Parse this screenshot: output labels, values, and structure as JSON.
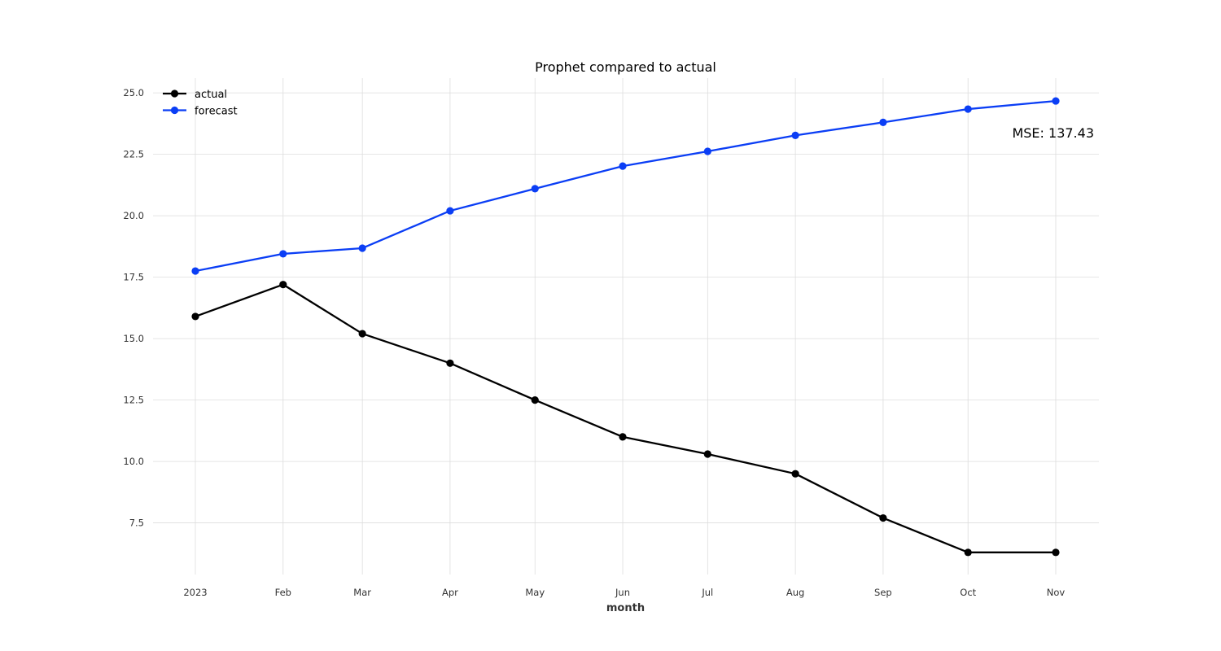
{
  "chart_data": {
    "type": "line",
    "title": "Prophet compared to actual",
    "xlabel": "month",
    "ylabel": "",
    "categories": [
      "2023",
      "Feb",
      "Mar",
      "Apr",
      "May",
      "Jun",
      "Jul",
      "Aug",
      "Sep",
      "Oct",
      "Nov"
    ],
    "x_dates": [
      "2023-01",
      "2023-02",
      "2023-03",
      "2023-04",
      "2023-05",
      "2023-06",
      "2023-07",
      "2023-08",
      "2023-09",
      "2023-10",
      "2023-11"
    ],
    "yticks": [
      7.5,
      10.0,
      12.5,
      15.0,
      17.5,
      20.0,
      22.5,
      25.0
    ],
    "ylim": [
      5.4,
      25.6
    ],
    "grid": true,
    "legend": "top-left",
    "series": [
      {
        "name": "actual",
        "color": "#000000",
        "values": [
          15.9,
          17.2,
          15.2,
          14.0,
          12.5,
          11.0,
          10.3,
          9.5,
          7.7,
          6.3,
          6.3
        ]
      },
      {
        "name": "forecast",
        "color": "#0b3ef5",
        "values": [
          17.75,
          18.45,
          18.68,
          20.2,
          21.1,
          22.02,
          22.62,
          23.27,
          23.8,
          24.34,
          24.67
        ]
      }
    ],
    "annotations": [
      {
        "text": "MSE: 137.43",
        "position": "top-right"
      }
    ]
  }
}
